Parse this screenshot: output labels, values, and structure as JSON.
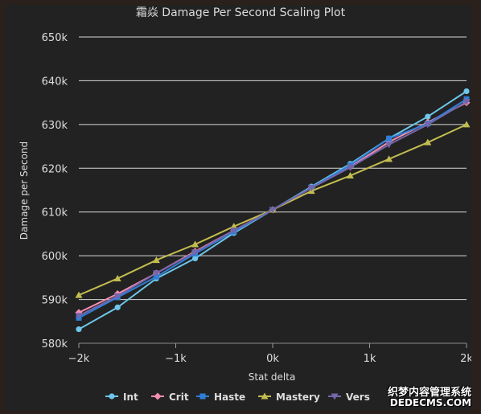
{
  "chart_data": {
    "type": "line",
    "title": "霜焱 Damage Per Second Scaling Plot",
    "xlabel": "Stat delta",
    "ylabel": "Damage per Second",
    "x": [
      -2000,
      -1600,
      -1200,
      -800,
      -400,
      0,
      400,
      800,
      1200,
      1600,
      2000
    ],
    "xlim": [
      -2000,
      2000
    ],
    "ylim": [
      580000,
      650000
    ],
    "xticks": [
      -2000,
      -1000,
      0,
      1000,
      2000
    ],
    "xtick_labels": [
      "−2k",
      "−1k",
      "0k",
      "1k",
      "2k"
    ],
    "yticks": [
      580000,
      590000,
      600000,
      610000,
      620000,
      630000,
      640000,
      650000
    ],
    "ytick_labels": [
      "580k",
      "590k",
      "600k",
      "610k",
      "620k",
      "630k",
      "640k",
      "650k"
    ],
    "grid": true,
    "legend_position": "bottom",
    "series": [
      {
        "name": "Int",
        "color": "#6ec6ea",
        "marker": "circle",
        "values": [
          583200,
          588200,
          594800,
          599400,
          605200,
          610500,
          615800,
          621000,
          626800,
          631800,
          637600
        ]
      },
      {
        "name": "Crit",
        "color": "#f48fb1",
        "marker": "diamond",
        "values": [
          587000,
          591300,
          596000,
          601000,
          605800,
          610500,
          615500,
          620300,
          626000,
          630500,
          635000
        ]
      },
      {
        "name": "Haste",
        "color": "#2f7ed8",
        "marker": "square",
        "values": [
          585800,
          590500,
          595200,
          600500,
          605500,
          610500,
          615600,
          620700,
          626800,
          630200,
          635800
        ]
      },
      {
        "name": "Mastery",
        "color": "#c3bd50",
        "marker": "triangle",
        "values": [
          591000,
          594800,
          599000,
          602600,
          606700,
          610500,
          614800,
          618300,
          622100,
          625900,
          630000
        ]
      },
      {
        "name": "Vers",
        "color": "#7566a9",
        "marker": "triangle-down",
        "values": [
          586300,
          590800,
          596000,
          600800,
          605800,
          610500,
          615500,
          620200,
          625400,
          630000,
          635200
        ]
      }
    ]
  },
  "watermark": {
    "line1": "织梦内容管理系统",
    "line2": "DEDECMS.COM"
  }
}
